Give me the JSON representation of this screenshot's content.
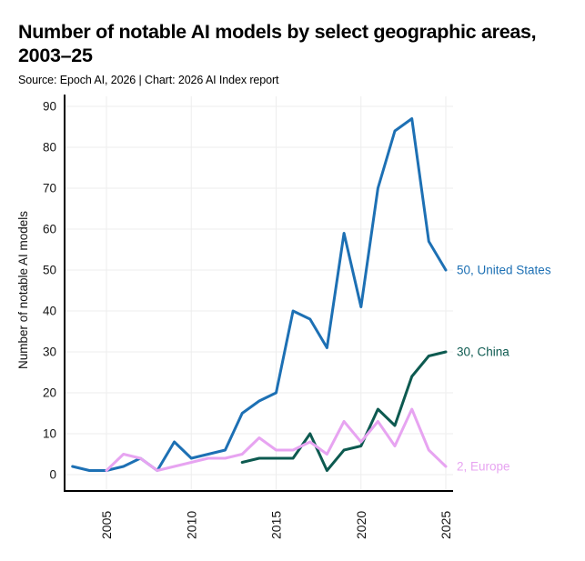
{
  "chart_data": {
    "type": "line",
    "title": "Number of notable AI models by select geographic areas, 2003–25",
    "subtitle": "Source: Epoch AI, 2026 | Chart: 2026 AI Index report",
    "ylabel": "Number of notable AI models",
    "xlabel": "",
    "ylim": [
      0,
      90
    ],
    "xlim": [
      2003,
      2025
    ],
    "grid": true,
    "y_ticks": [
      0,
      10,
      20,
      30,
      40,
      50,
      60,
      70,
      80,
      90
    ],
    "x_ticks": [
      "2005",
      "2010",
      "2015",
      "2020",
      "2025"
    ],
    "x_tick_years": [
      2005,
      2010,
      2015,
      2020,
      2025
    ],
    "legend_position": "line-end-labels",
    "axis_color": "#000000",
    "grid_color": "#ededed",
    "tick_text_color": "#141414",
    "series": [
      {
        "name": "United States",
        "color": "#1d70b4",
        "end_label": "50, United States",
        "end_value": 50,
        "years": [
          2003,
          2004,
          2005,
          2006,
          2007,
          2008,
          2009,
          2010,
          2011,
          2012,
          2013,
          2014,
          2015,
          2016,
          2017,
          2018,
          2019,
          2020,
          2021,
          2022,
          2023,
          2024,
          2025
        ],
        "values": [
          2,
          1,
          1,
          2,
          4,
          1,
          8,
          4,
          5,
          6,
          15,
          18,
          20,
          40,
          38,
          31,
          59,
          41,
          70,
          84,
          87,
          57,
          50
        ]
      },
      {
        "name": "China",
        "color": "#0d5a50",
        "end_label": "30, China",
        "end_value": 30,
        "years": [
          2013,
          2014,
          2015,
          2016,
          2017,
          2018,
          2019,
          2020,
          2021,
          2022,
          2023,
          2024,
          2025
        ],
        "values": [
          3,
          4,
          4,
          4,
          10,
          1,
          6,
          7,
          16,
          12,
          24,
          29,
          30
        ]
      },
      {
        "name": "Europe",
        "color": "#e7a4f1",
        "end_label": "2, Europe",
        "end_value": 2,
        "years": [
          2005,
          2006,
          2007,
          2008,
          2009,
          2010,
          2011,
          2012,
          2013,
          2014,
          2015,
          2016,
          2017,
          2018,
          2019,
          2020,
          2021,
          2022,
          2023,
          2024,
          2025
        ],
        "values": [
          1,
          5,
          4,
          1,
          2,
          3,
          4,
          4,
          5,
          9,
          6,
          6,
          8,
          5,
          13,
          8,
          13,
          7,
          16,
          6,
          2
        ]
      }
    ]
  }
}
